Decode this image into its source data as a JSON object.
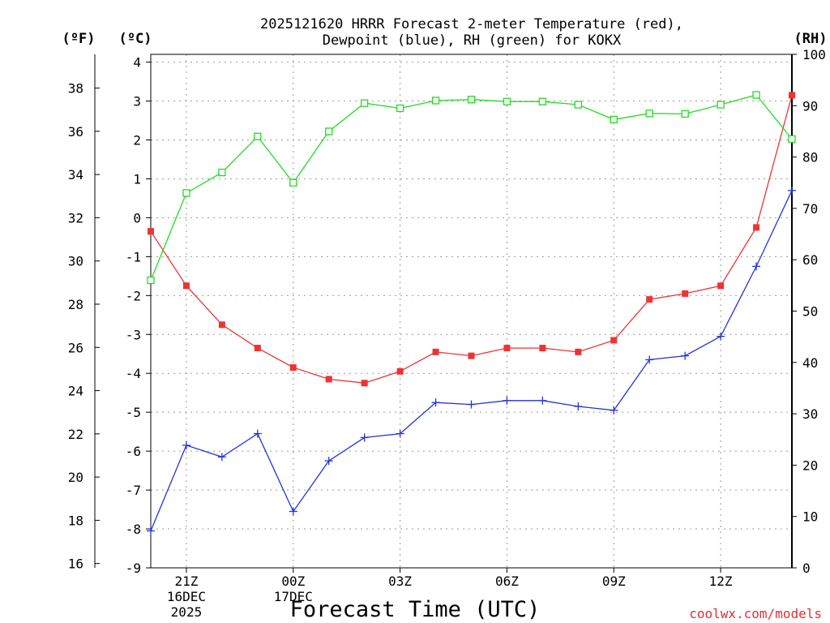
{
  "chart_data": {
    "type": "line",
    "title_line1": "2025121620 HRRR Forecast 2-meter Temperature (red),",
    "title_line2": "Dewpoint (blue), RH (green) for KOKX",
    "left_axis_f_label": "(ºF)",
    "left_axis_c_label": "(ºC)",
    "right_axis_label": "(RH)",
    "xlabel": "Forecast Time (UTC)",
    "watermark": "coolwx.com/models",
    "x_hours": [
      20,
      21,
      22,
      23,
      24,
      25,
      26,
      27,
      28,
      29,
      30,
      31,
      32,
      33,
      34,
      35,
      36,
      37,
      38
    ],
    "xlim": [
      20,
      38
    ],
    "ylim_c": [
      -9,
      4.2
    ],
    "ylim_rh": [
      0,
      100
    ],
    "y_ticks_c": [
      -9,
      -8,
      -7,
      -6,
      -5,
      -4,
      -3,
      -2,
      -1,
      0,
      1,
      2,
      3,
      4
    ],
    "y_ticks_f": [
      16,
      18,
      20,
      22,
      24,
      26,
      28,
      30,
      32,
      34,
      36,
      38
    ],
    "y_ticks_rh": [
      0,
      10,
      20,
      30,
      40,
      50,
      60,
      70,
      80,
      90,
      100
    ],
    "x_ticks": [
      {
        "hour": 21,
        "label": "21Z",
        "sub1": "16DEC",
        "sub2": "2025"
      },
      {
        "hour": 24,
        "label": "00Z",
        "sub1": "17DEC",
        "sub2": ""
      },
      {
        "hour": 27,
        "label": "03Z",
        "sub1": "",
        "sub2": ""
      },
      {
        "hour": 30,
        "label": "06Z",
        "sub1": "",
        "sub2": ""
      },
      {
        "hour": 33,
        "label": "09Z",
        "sub1": "",
        "sub2": ""
      },
      {
        "hour": 36,
        "label": "12Z",
        "sub1": "",
        "sub2": ""
      }
    ],
    "series": [
      {
        "name": "2-meter Temperature",
        "axis": "C",
        "color": "#ee3333",
        "marker": "filled-square",
        "values": [
          -0.35,
          -1.75,
          -2.75,
          -3.35,
          -3.85,
          -4.15,
          -4.25,
          -3.95,
          -3.45,
          -3.55,
          -3.35,
          -3.35,
          -3.45,
          -3.15,
          -2.1,
          -1.95,
          -1.75,
          -0.25,
          3.15
        ]
      },
      {
        "name": "Dewpoint",
        "axis": "C",
        "color": "#2233dd",
        "marker": "plus",
        "values": [
          -8.05,
          -5.85,
          -6.15,
          -5.55,
          -7.55,
          -6.25,
          -5.65,
          -5.55,
          -4.75,
          -4.8,
          -4.7,
          -4.7,
          -4.85,
          -4.95,
          -3.65,
          -3.55,
          -3.05,
          -1.25,
          0.7
        ]
      },
      {
        "name": "RH",
        "axis": "RH",
        "color": "#22dd22",
        "marker": "open-square",
        "values": [
          56,
          73,
          77,
          84,
          75,
          85,
          90.5,
          89.5,
          91,
          91.2,
          90.8,
          90.8,
          90.2,
          87.3,
          88.5,
          88.4,
          90.2,
          92.1,
          83.5
        ]
      }
    ]
  }
}
